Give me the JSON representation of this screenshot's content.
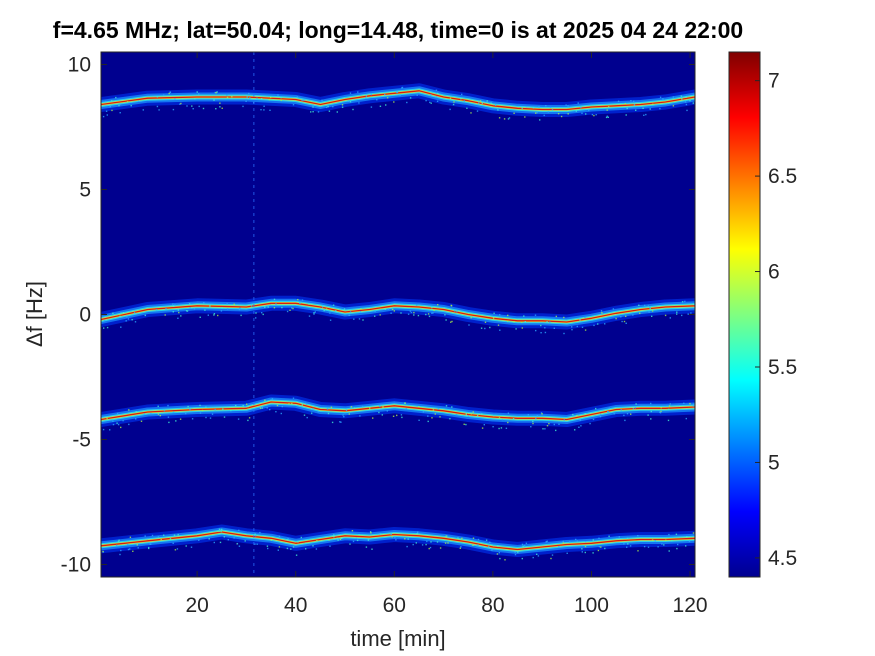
{
  "chart_data": {
    "type": "heatmap",
    "title": "f=4.65 MHz;  lat=50.04; long=14.48, time=0 is at 2025 04 24 22:00",
    "xlabel": "time [min]",
    "ylabel": "Δf [Hz]",
    "xlim": [
      0.5,
      121
    ],
    "ylim": [
      -10.5,
      10.5
    ],
    "x_ticks": [
      20,
      40,
      60,
      80,
      100,
      120
    ],
    "y_ticks": [
      10,
      5,
      0,
      -5,
      -10
    ],
    "colorbar": {
      "colormap": "jet",
      "range": [
        4.4,
        7.15
      ],
      "ticks": [
        4.5,
        5,
        5.5,
        6,
        6.5,
        7
      ]
    },
    "background_value": 4.4,
    "series": [
      {
        "x": [
          0.5,
          10,
          20,
          30,
          40,
          45,
          50,
          55,
          60,
          65,
          70,
          75,
          80,
          85,
          90,
          95,
          100,
          105,
          110,
          115,
          121
        ],
        "y": [
          8.4,
          8.65,
          8.7,
          8.7,
          8.6,
          8.4,
          8.6,
          8.75,
          8.85,
          8.95,
          8.7,
          8.55,
          8.35,
          8.25,
          8.2,
          8.2,
          8.3,
          8.35,
          8.4,
          8.5,
          8.7
        ]
      },
      {
        "x": [
          0.5,
          10,
          20,
          30,
          35,
          40,
          45,
          50,
          55,
          60,
          65,
          70,
          75,
          80,
          85,
          90,
          95,
          100,
          105,
          110,
          115,
          121
        ],
        "y": [
          -0.2,
          0.2,
          0.35,
          0.3,
          0.45,
          0.45,
          0.3,
          0.1,
          0.2,
          0.35,
          0.3,
          0.2,
          0.0,
          -0.15,
          -0.25,
          -0.25,
          -0.3,
          -0.15,
          0.05,
          0.2,
          0.3,
          0.35
        ]
      },
      {
        "x": [
          0.5,
          10,
          20,
          30,
          35,
          40,
          45,
          50,
          55,
          60,
          65,
          70,
          75,
          80,
          85,
          90,
          95,
          100,
          105,
          110,
          115,
          121
        ],
        "y": [
          -4.2,
          -3.9,
          -3.8,
          -3.75,
          -3.5,
          -3.55,
          -3.8,
          -3.85,
          -3.75,
          -3.65,
          -3.75,
          -3.85,
          -4.0,
          -4.1,
          -4.15,
          -4.15,
          -4.2,
          -4.0,
          -3.8,
          -3.75,
          -3.75,
          -3.7
        ]
      },
      {
        "x": [
          0.5,
          10,
          20,
          25,
          30,
          35,
          40,
          45,
          50,
          55,
          60,
          65,
          70,
          75,
          80,
          85,
          90,
          95,
          100,
          105,
          110,
          115,
          121
        ],
        "y": [
          -9.25,
          -9.05,
          -8.85,
          -8.7,
          -8.85,
          -8.95,
          -9.15,
          -9.0,
          -8.85,
          -8.9,
          -8.8,
          -8.85,
          -8.95,
          -9.1,
          -9.3,
          -9.4,
          -9.3,
          -9.2,
          -9.15,
          -9.05,
          -9.0,
          -9.0,
          -8.95
        ]
      }
    ]
  }
}
